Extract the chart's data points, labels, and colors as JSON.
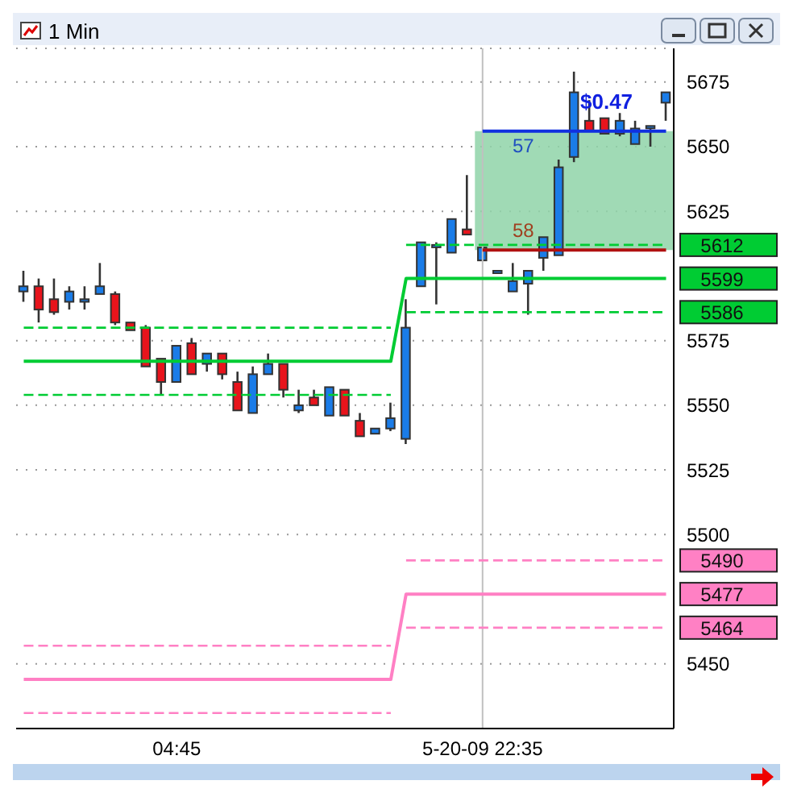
{
  "chart_data": {
    "type": "candlestick",
    "title": "1 Min",
    "categories": [
      null,
      null,
      null,
      null,
      null,
      null,
      null,
      null,
      null,
      null,
      "04:45",
      null,
      null,
      null,
      null,
      null,
      null,
      null,
      null,
      null,
      null,
      null,
      null,
      null,
      null,
      null,
      null,
      null,
      null,
      null,
      "5-20-09 22:35",
      null,
      null,
      null,
      null,
      null,
      null,
      null,
      null,
      null,
      null,
      null,
      null
    ],
    "ohlc": [
      [
        5594,
        5602,
        5590,
        5596
      ],
      [
        5596,
        5599,
        5582,
        5587
      ],
      [
        5591,
        5599,
        5585,
        5586
      ],
      [
        5590,
        5596,
        5587,
        5594
      ],
      [
        5590,
        5596,
        5587,
        5591
      ],
      [
        5593,
        5605,
        5593,
        5596
      ],
      [
        5593,
        5594,
        5581,
        5582
      ],
      [
        5582,
        5582,
        5579,
        5579
      ],
      [
        5580,
        5581,
        5565,
        5565
      ],
      [
        5568,
        5568,
        5554,
        5559
      ],
      [
        5559,
        5573,
        5559,
        5573
      ],
      [
        5574,
        5576,
        5562,
        5562
      ],
      [
        5566,
        5570,
        5563,
        5570
      ],
      [
        5570,
        5570,
        5560,
        5562
      ],
      [
        5559,
        5563,
        5548,
        5548
      ],
      [
        5547,
        5565,
        5547,
        5562
      ],
      [
        5562,
        5570,
        5562,
        5566
      ],
      [
        5566,
        5566,
        5553,
        5556
      ],
      [
        5548,
        5556,
        5547,
        5550
      ],
      [
        5553,
        5556,
        5550,
        5550
      ],
      [
        5546,
        5557,
        5546,
        5557
      ],
      [
        5556,
        5556,
        5546,
        5546
      ],
      [
        5544,
        5547,
        5538,
        5538
      ],
      [
        5539,
        5541,
        5539,
        5541
      ],
      [
        5541,
        5551,
        5540,
        5545
      ],
      [
        5537,
        5591,
        5535,
        5580
      ],
      [
        5596,
        5613,
        5596,
        5613
      ],
      [
        5612,
        5613,
        5589,
        5612
      ],
      [
        5609,
        5622,
        5609,
        5622
      ],
      [
        5618,
        5639,
        5616,
        5616
      ],
      [
        5606,
        5611,
        5606,
        5611
      ],
      [
        5602,
        5602,
        5602,
        5602
      ],
      [
        5594,
        5605,
        5594,
        5598
      ],
      [
        5597,
        5602,
        5585,
        5602
      ],
      [
        5607,
        5615,
        5602,
        5615
      ],
      [
        5608,
        5645,
        5608,
        5642
      ],
      [
        5646,
        5679,
        5644,
        5671
      ],
      [
        5660,
        5668,
        5656,
        5656
      ],
      [
        5661,
        5661,
        5655,
        5655
      ],
      [
        5655,
        5663,
        5654,
        5660
      ],
      [
        5651,
        5660,
        5651,
        5657
      ],
      [
        5658,
        5658,
        5650,
        5658
      ],
      [
        5667,
        5671,
        5660,
        5671
      ]
    ],
    "colors": [
      "#1a7ce8",
      "#e8141c",
      "#e8141c",
      "#1a7ce8",
      "#1a7ce8",
      "#1a7ce8",
      "#e8141c",
      "#e8141c",
      "#e8141c",
      "#e8141c",
      "#1a7ce8",
      "#e8141c",
      "#1a7ce8",
      "#e8141c",
      "#e8141c",
      "#1a7ce8",
      "#1a7ce8",
      "#e8141c",
      "#1a7ce8",
      "#e8141c",
      "#1a7ce8",
      "#e8141c",
      "#e8141c",
      "#1a7ce8",
      "#1a7ce8",
      "#1a7ce8",
      "#1a7ce8",
      "#1a7ce8",
      "#1a7ce8",
      "#e8141c",
      "#1a7ce8",
      "#1a7ce8",
      "#1a7ce8",
      "#1a7ce8",
      "#1a7ce8",
      "#1a7ce8",
      "#1a7ce8",
      "#e8141c",
      "#e8141c",
      "#1a7ce8",
      "#1a7ce8",
      "#1a7ce8",
      "#1a7ce8"
    ],
    "series": [
      {
        "type": "line",
        "line_style": "solid",
        "color": "#00cc33",
        "values": [
          5567,
          5567,
          5567,
          5567,
          5567,
          5567,
          5567,
          5567,
          5567,
          5567,
          5567,
          5567,
          5567,
          5567,
          5567,
          5567,
          5567,
          5567,
          5567,
          5567,
          5567,
          5567,
          5567,
          5567,
          5567,
          5599,
          5599,
          5599,
          5599,
          5599,
          5599,
          5599,
          5599,
          5599,
          5599,
          5599,
          5599,
          5599,
          5599,
          5599,
          5599,
          5599,
          5599
        ],
        "value_labels": [
          null,
          null,
          null,
          null,
          null,
          null,
          null,
          null,
          null,
          null,
          null,
          null,
          null,
          null,
          null,
          null,
          null,
          null,
          null,
          null,
          null,
          null,
          null,
          null,
          null,
          null,
          null,
          null,
          null,
          null,
          null,
          null,
          null,
          null,
          null,
          null,
          null,
          null,
          null,
          null,
          null,
          null,
          "5599"
        ]
      },
      {
        "type": "line",
        "line_style": "dashed",
        "color": "#00cc33",
        "values": [
          5580,
          5580,
          5580,
          5580,
          5580,
          5580,
          5580,
          5580,
          5580,
          5580,
          5580,
          5580,
          5580,
          5580,
          5580,
          5580,
          5580,
          5580,
          5580,
          5580,
          5580,
          5580,
          5580,
          5580,
          5580,
          null,
          null,
          null,
          null,
          null,
          null,
          null,
          null,
          null,
          null,
          null,
          null,
          null,
          null,
          null,
          null,
          null,
          null
        ]
      },
      {
        "type": "line",
        "line_style": "dashed",
        "color": "#00cc33",
        "values": [
          5554,
          5554,
          5554,
          5554,
          5554,
          5554,
          5554,
          5554,
          5554,
          5554,
          5554,
          5554,
          5554,
          5554,
          5554,
          5554,
          5554,
          5554,
          5554,
          5554,
          5554,
          5554,
          5554,
          5554,
          5554,
          null,
          null,
          null,
          null,
          null,
          null,
          null,
          null,
          null,
          null,
          null,
          null,
          null,
          null,
          null,
          null,
          null,
          null
        ]
      },
      {
        "type": "line",
        "line_style": "dashed",
        "color": "#00cc33",
        "values": [
          null,
          null,
          null,
          null,
          null,
          null,
          null,
          null,
          null,
          null,
          null,
          null,
          null,
          null,
          null,
          null,
          null,
          null,
          null,
          null,
          null,
          null,
          null,
          null,
          null,
          5612,
          5612,
          5612,
          5612,
          5612,
          5612,
          5612,
          5612,
          5612,
          5612,
          5612,
          5612,
          5612,
          5612,
          5612,
          5612,
          5612,
          5612
        ],
        "value_labels": [
          null,
          null,
          null,
          null,
          null,
          null,
          null,
          null,
          null,
          null,
          null,
          null,
          null,
          null,
          null,
          null,
          null,
          null,
          null,
          null,
          null,
          null,
          null,
          null,
          null,
          null,
          null,
          null,
          null,
          null,
          null,
          null,
          null,
          null,
          null,
          null,
          null,
          null,
          null,
          null,
          null,
          null,
          "5612"
        ]
      },
      {
        "type": "line",
        "line_style": "dashed",
        "color": "#00cc33",
        "values": [
          null,
          null,
          null,
          null,
          null,
          null,
          null,
          null,
          null,
          null,
          null,
          null,
          null,
          null,
          null,
          null,
          null,
          null,
          null,
          null,
          null,
          null,
          null,
          null,
          null,
          5586,
          5586,
          5586,
          5586,
          5586,
          5586,
          5586,
          5586,
          5586,
          5586,
          5586,
          5586,
          5586,
          5586,
          5586,
          5586,
          5586,
          5586
        ],
        "value_labels": [
          null,
          null,
          null,
          null,
          null,
          null,
          null,
          null,
          null,
          null,
          null,
          null,
          null,
          null,
          null,
          null,
          null,
          null,
          null,
          null,
          null,
          null,
          null,
          null,
          null,
          null,
          null,
          null,
          null,
          null,
          null,
          null,
          null,
          null,
          null,
          null,
          null,
          null,
          null,
          null,
          null,
          null,
          "5586"
        ]
      },
      {
        "type": "line",
        "line_style": "solid",
        "color": "#ff80c4",
        "values": [
          5444,
          5444,
          5444,
          5444,
          5444,
          5444,
          5444,
          5444,
          5444,
          5444,
          5444,
          5444,
          5444,
          5444,
          5444,
          5444,
          5444,
          5444,
          5444,
          5444,
          5444,
          5444,
          5444,
          5444,
          5444,
          5477,
          5477,
          5477,
          5477,
          5477,
          5477,
          5477,
          5477,
          5477,
          5477,
          5477,
          5477,
          5477,
          5477,
          5477,
          5477,
          5477,
          5477
        ],
        "value_labels": [
          null,
          null,
          null,
          null,
          null,
          null,
          null,
          null,
          null,
          null,
          null,
          null,
          null,
          null,
          null,
          null,
          null,
          null,
          null,
          null,
          null,
          null,
          null,
          null,
          null,
          null,
          null,
          null,
          null,
          null,
          null,
          null,
          null,
          null,
          null,
          null,
          null,
          null,
          null,
          null,
          null,
          null,
          "5477"
        ]
      },
      {
        "type": "line",
        "line_style": "dashed",
        "color": "#ff80c4",
        "values": [
          5457,
          5457,
          5457,
          5457,
          5457,
          5457,
          5457,
          5457,
          5457,
          5457,
          5457,
          5457,
          5457,
          5457,
          5457,
          5457,
          5457,
          5457,
          5457,
          5457,
          5457,
          5457,
          5457,
          5457,
          5457,
          null,
          null,
          null,
          null,
          null,
          null,
          null,
          null,
          null,
          null,
          null,
          null,
          null,
          null,
          null,
          null,
          null,
          null
        ]
      },
      {
        "type": "line",
        "line_style": "dashed",
        "color": "#ff80c4",
        "values": [
          5431,
          5431,
          5431,
          5431,
          5431,
          5431,
          5431,
          5431,
          5431,
          5431,
          5431,
          5431,
          5431,
          5431,
          5431,
          5431,
          5431,
          5431,
          5431,
          5431,
          5431,
          5431,
          5431,
          5431,
          5431,
          null,
          null,
          null,
          null,
          null,
          null,
          null,
          null,
          null,
          null,
          null,
          null,
          null,
          null,
          null,
          null,
          null,
          null
        ]
      },
      {
        "type": "line",
        "line_style": "dashed",
        "color": "#ff80c4",
        "values": [
          null,
          null,
          null,
          null,
          null,
          null,
          null,
          null,
          null,
          null,
          null,
          null,
          null,
          null,
          null,
          null,
          null,
          null,
          null,
          null,
          null,
          null,
          null,
          null,
          null,
          5490,
          5490,
          5490,
          5490,
          5490,
          5490,
          5490,
          5490,
          5490,
          5490,
          5490,
          5490,
          5490,
          5490,
          5490,
          5490,
          5490,
          5490
        ],
        "value_labels": [
          null,
          null,
          null,
          null,
          null,
          null,
          null,
          null,
          null,
          null,
          null,
          null,
          null,
          null,
          null,
          null,
          null,
          null,
          null,
          null,
          null,
          null,
          null,
          null,
          null,
          null,
          null,
          null,
          null,
          null,
          null,
          null,
          null,
          null,
          null,
          null,
          null,
          null,
          null,
          null,
          null,
          null,
          "5490"
        ]
      },
      {
        "type": "line",
        "line_style": "dashed",
        "color": "#ff80c4",
        "values": [
          null,
          null,
          null,
          null,
          null,
          null,
          null,
          null,
          null,
          null,
          null,
          null,
          null,
          null,
          null,
          null,
          null,
          null,
          null,
          null,
          null,
          null,
          null,
          null,
          null,
          5464,
          5464,
          5464,
          5464,
          5464,
          5464,
          5464,
          5464,
          5464,
          5464,
          5464,
          5464,
          5464,
          5464,
          5464,
          5464,
          5464,
          5464
        ],
        "value_labels": [
          null,
          null,
          null,
          null,
          null,
          null,
          null,
          null,
          null,
          null,
          null,
          null,
          null,
          null,
          null,
          null,
          null,
          null,
          null,
          null,
          null,
          null,
          null,
          null,
          null,
          null,
          null,
          null,
          null,
          null,
          null,
          null,
          null,
          null,
          null,
          null,
          null,
          null,
          null,
          null,
          null,
          null,
          "5464"
        ]
      }
    ],
    "ylim": [
      5425,
      5688
    ],
    "yticks": [
      5450,
      5500,
      5525,
      5550,
      5575,
      5625,
      5650,
      5675
    ],
    "grid": "y",
    "legend": false,
    "marker": "none",
    "ref_lines": [
      {
        "axis": "x",
        "value": "5-20-09 22:35",
        "color": "#c0c0c0"
      },
      {
        "axis": "y",
        "value": 5656,
        "color": "#1030e0"
      },
      {
        "axis": "y",
        "value": 5610,
        "color": "#b01010"
      }
    ],
    "bands": [
      {
        "axis": "y",
        "from": 5610,
        "to": 5656,
        "color": "#8fd4a8"
      }
    ],
    "annotations": [
      "$0.47",
      "57",
      "58"
    ]
  }
}
